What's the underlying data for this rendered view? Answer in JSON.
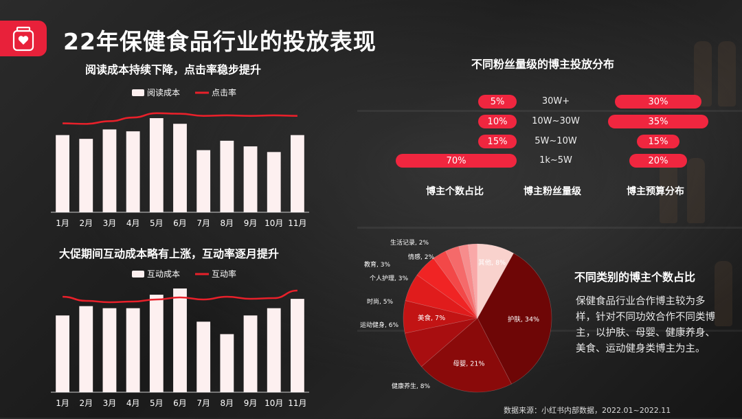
{
  "page_title": "22年保健食品行业的投放表现",
  "source_note": "数据来源：小红书内部数据，2022.01~2022.11",
  "colors": {
    "accent": "#e8213a",
    "bar": "#fdf0f0",
    "line": "#e8202a"
  },
  "icons": {
    "logo": "supplement-bottle-heart-icon"
  },
  "chart_data": [
    {
      "type": "bar",
      "title": "阅读成本持续下降，点击率稳步提升",
      "categories": [
        "1月",
        "2月",
        "3月",
        "4月",
        "5月",
        "6月",
        "7月",
        "8月",
        "9月",
        "10月",
        "11月"
      ],
      "series": [
        {
          "name": "阅读成本",
          "type": "bar",
          "values": [
            82,
            78,
            88,
            86,
            100,
            94,
            66,
            76,
            70,
            64,
            82
          ]
        },
        {
          "name": "点击率",
          "type": "line",
          "values": [
            80,
            79,
            84,
            91,
            99,
            98,
            94,
            95,
            94,
            95,
            94
          ]
        }
      ],
      "ylim": [
        0,
        100
      ],
      "legend": "top-center"
    },
    {
      "type": "bar",
      "title": "大促期间互动成本略有上涨，互动率逐月提升",
      "categories": [
        "1月",
        "2月",
        "3月",
        "4月",
        "5月",
        "6月",
        "7月",
        "8月",
        "9月",
        "10月",
        "11月"
      ],
      "series": [
        {
          "name": "互动成本",
          "type": "bar",
          "values": [
            74,
            83,
            81,
            81,
            94,
            100,
            68,
            56,
            74,
            81,
            90
          ]
        },
        {
          "name": "互动率",
          "type": "line",
          "values": [
            88,
            82,
            80,
            81,
            84,
            87,
            84,
            88,
            85,
            86,
            97
          ]
        }
      ],
      "ylim": [
        0,
        100
      ],
      "legend": "top-center"
    },
    {
      "type": "bar",
      "title": "不同粉丝量级的博主投放分布",
      "categories": [
        "30W+",
        "10W~30W",
        "5W~10W",
        "1k~5W"
      ],
      "series": [
        {
          "name": "博主个数占比",
          "values": [
            5,
            10,
            15,
            70
          ]
        },
        {
          "name": "博主预算分布",
          "values": [
            30,
            35,
            15,
            20
          ]
        }
      ],
      "category_axis_label": "博主粉丝量级",
      "value_unit": "%"
    },
    {
      "type": "pie",
      "title": "不同类别的博主个数占比",
      "slices": [
        {
          "label": "护肤",
          "value": 34,
          "color": "#6e0606"
        },
        {
          "label": "母婴",
          "value": 21,
          "color": "#8a0a0a"
        },
        {
          "label": "健康养生",
          "value": 8,
          "color": "#a80e10"
        },
        {
          "label": "美食",
          "value": 7,
          "color": "#c21414"
        },
        {
          "label": "运动健身",
          "value": 6,
          "color": "#e01c1c"
        },
        {
          "label": "时尚",
          "value": 5,
          "color": "#f02424"
        },
        {
          "label": "个人护理",
          "value": 3,
          "color": "#f34848"
        },
        {
          "label": "教育",
          "value": 3,
          "color": "#f56a6a"
        },
        {
          "label": "情感",
          "value": 2,
          "color": "#f78c8c"
        },
        {
          "label": "生活记录",
          "value": 2,
          "color": "#f9a8a8"
        },
        {
          "label": "其他",
          "value": 8,
          "color": "#f9d2cd"
        }
      ]
    }
  ],
  "pie_description": "保健食品行业合作博主较为多样，针对不同功效合作不同类博主，以护肤、母婴、健康养身、美食、运动健身类博主为主。"
}
